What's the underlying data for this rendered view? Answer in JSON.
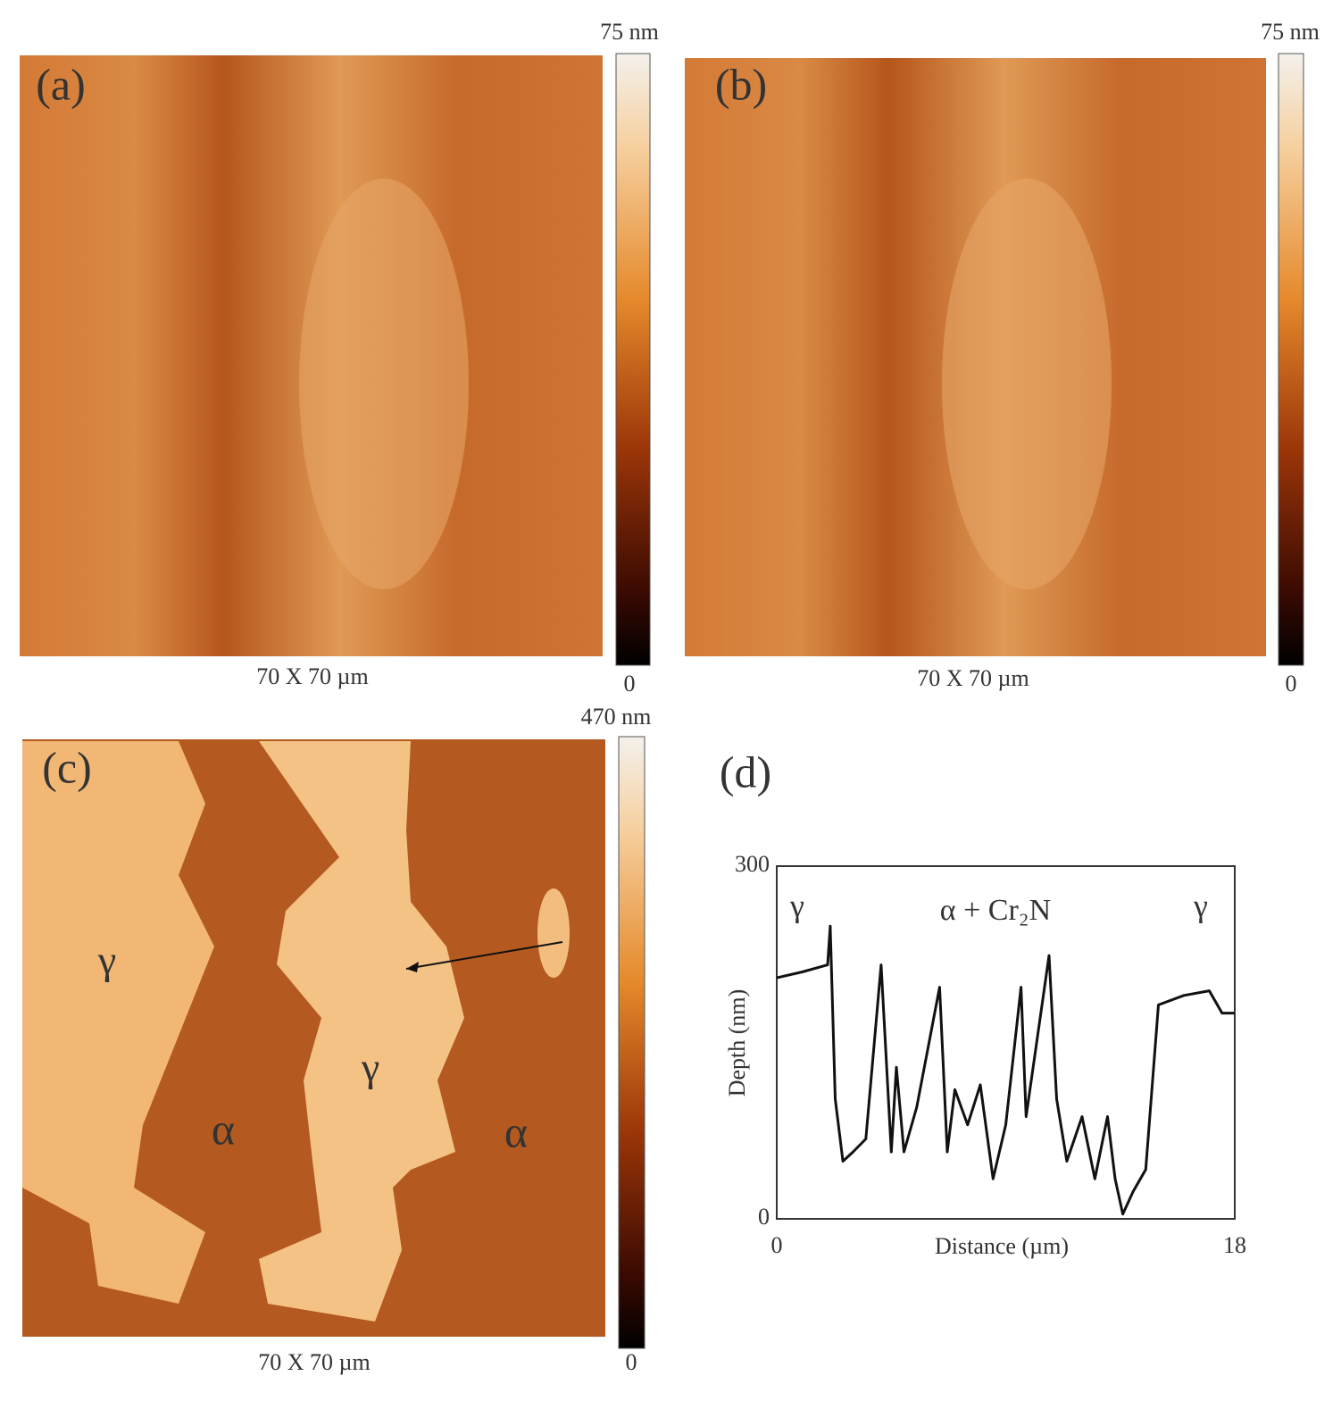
{
  "panels": [
    {
      "label": "(a)",
      "colorbar_top": "75 nm",
      "colorbar_bottom": "0",
      "scan_size": "70 X 70 µm",
      "annotations": []
    },
    {
      "label": "(b)",
      "colorbar_top": "75 nm",
      "colorbar_bottom": "0",
      "scan_size": "70 X 70 µm",
      "annotations": []
    },
    {
      "label": "(c)",
      "colorbar_top": "470 nm",
      "colorbar_bottom": "0",
      "scan_size": "70 X 70 µm",
      "annotations": [
        "γ",
        "γ",
        "α",
        "α"
      ]
    }
  ],
  "chart_data": {
    "type": "line",
    "title": "(d)",
    "x_label": "Distance (µm)",
    "y_label": "Depth (nm)",
    "annotations": [
      "γ",
      "α + Cr₂N",
      "γ"
    ],
    "color": "#111111",
    "xlim": [
      0,
      18
    ],
    "ylim": [
      0,
      300
    ],
    "xticks": [
      0,
      18
    ],
    "yticks": [
      0,
      300
    ],
    "x": [
      0,
      1,
      2,
      2.1,
      2.3,
      2.6,
      3,
      3.5,
      4.1,
      4.5,
      4.7,
      5,
      5.5,
      6.4,
      6.7,
      7,
      7.5,
      8,
      8.5,
      9,
      9.6,
      9.8,
      10.7,
      11,
      11.4,
      12,
      12.5,
      13,
      13.3,
      13.6,
      14,
      14.5,
      15,
      16,
      17,
      17.5,
      18
    ],
    "values": [
      205,
      210,
      216,
      249,
      102,
      49,
      57,
      68,
      216,
      57,
      129,
      57,
      95,
      197,
      57,
      110,
      80,
      114,
      34,
      80,
      197,
      87,
      224,
      102,
      49,
      87,
      34,
      87,
      34,
      4,
      23,
      42,
      182,
      190,
      194,
      175,
      175
    ]
  }
}
